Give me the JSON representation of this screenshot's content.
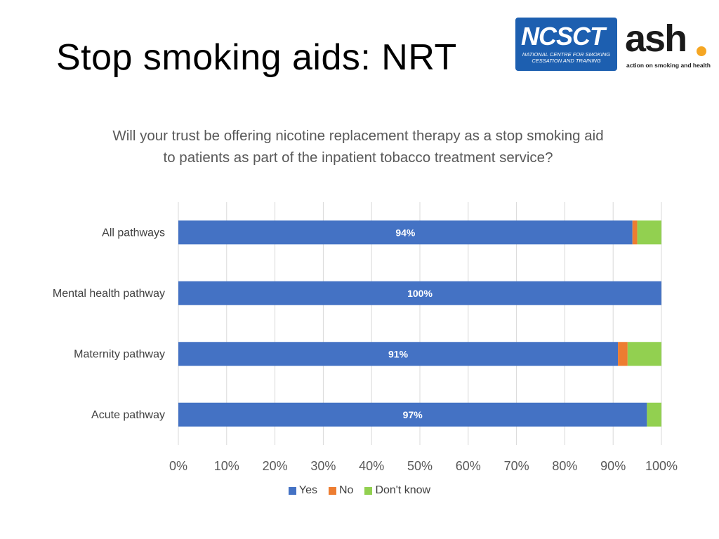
{
  "slide": {
    "title": "Stop smoking aids: NRT"
  },
  "logos": {
    "ncsct": {
      "name": "NCSCT",
      "tagline_line1": "NATIONAL CENTRE FOR SMOKING",
      "tagline_line2": "CESSATION AND TRAINING",
      "color": "#1d5fb0"
    },
    "ash": {
      "name": "ash",
      "tagline": "action on smoking and health",
      "dot_color": "#f5a623"
    }
  },
  "chart_data": {
    "type": "bar",
    "orientation": "horizontal",
    "stacked": true,
    "title": "Will your trust be offering nicotine replacement therapy as a stop smoking aid to patients as part of the inpatient tobacco treatment service?",
    "categories": [
      "All pathways",
      "Mental health pathway",
      "Maternity pathway",
      "Acute pathway"
    ],
    "series": [
      {
        "name": "Yes",
        "color": "#4472c4",
        "values": [
          94,
          100,
          91,
          97
        ],
        "labels": [
          "94%",
          "100%",
          "91%",
          "97%"
        ]
      },
      {
        "name": "No",
        "color": "#ed7d31",
        "values": [
          1,
          0,
          2,
          0
        ]
      },
      {
        "name": "Don't know",
        "color": "#92d050",
        "values": [
          5,
          0,
          7,
          3
        ]
      }
    ],
    "xlim": [
      0,
      100
    ],
    "x_ticks": [
      "0%",
      "10%",
      "20%",
      "30%",
      "40%",
      "50%",
      "60%",
      "70%",
      "80%",
      "90%",
      "100%"
    ],
    "grid": true,
    "legend_position": "bottom"
  }
}
